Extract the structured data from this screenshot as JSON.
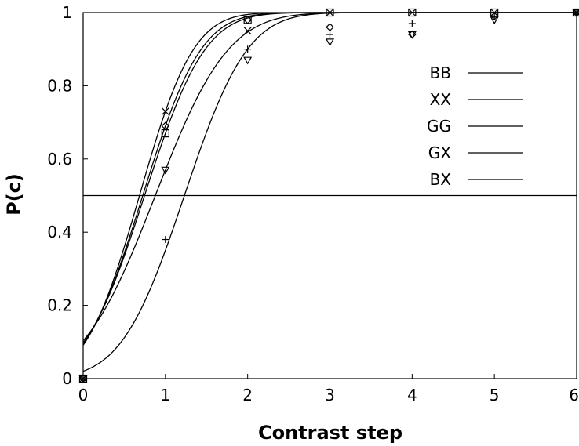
{
  "chart_data": {
    "type": "line",
    "title": "",
    "xlabel": "Contrast step",
    "ylabel": "P(c)",
    "xlim": [
      0,
      6
    ],
    "ylim": [
      0,
      1
    ],
    "x_ticks": [
      0,
      1,
      2,
      3,
      4,
      5,
      6
    ],
    "y_ticks": [
      "0",
      "0.2",
      "0.4",
      "0.6",
      "0.8",
      "1"
    ],
    "grid": false,
    "legend_position": "top-right",
    "reference_line": {
      "y": 0.5
    },
    "series": [
      {
        "name": "BB",
        "marker": "square",
        "x": [
          0,
          1,
          2,
          3,
          4,
          5,
          6
        ],
        "y": [
          0.0,
          0.67,
          0.98,
          1.0,
          1.0,
          1.0,
          1.0
        ]
      },
      {
        "name": "XX",
        "marker": "x",
        "x": [
          0,
          1,
          2,
          3,
          4,
          5,
          6
        ],
        "y": [
          0.0,
          0.73,
          0.95,
          1.0,
          1.0,
          1.0,
          1.0
        ]
      },
      {
        "name": "GG",
        "marker": "diamond",
        "x": [
          0,
          1,
          2,
          3,
          4,
          5,
          6
        ],
        "y": [
          0.0,
          0.69,
          0.98,
          0.96,
          0.94,
          0.99,
          1.0
        ]
      },
      {
        "name": "GX",
        "marker": "plus",
        "x": [
          0,
          1,
          2,
          3,
          4,
          5,
          6
        ],
        "y": [
          0.0,
          0.38,
          0.9,
          0.94,
          0.97,
          0.99,
          1.0
        ]
      },
      {
        "name": "BX",
        "marker": "triangle-down",
        "x": [
          0,
          1,
          2,
          3,
          4,
          5,
          6
        ],
        "y": [
          0.0,
          0.57,
          0.87,
          0.92,
          0.94,
          0.98,
          1.0
        ]
      }
    ]
  }
}
